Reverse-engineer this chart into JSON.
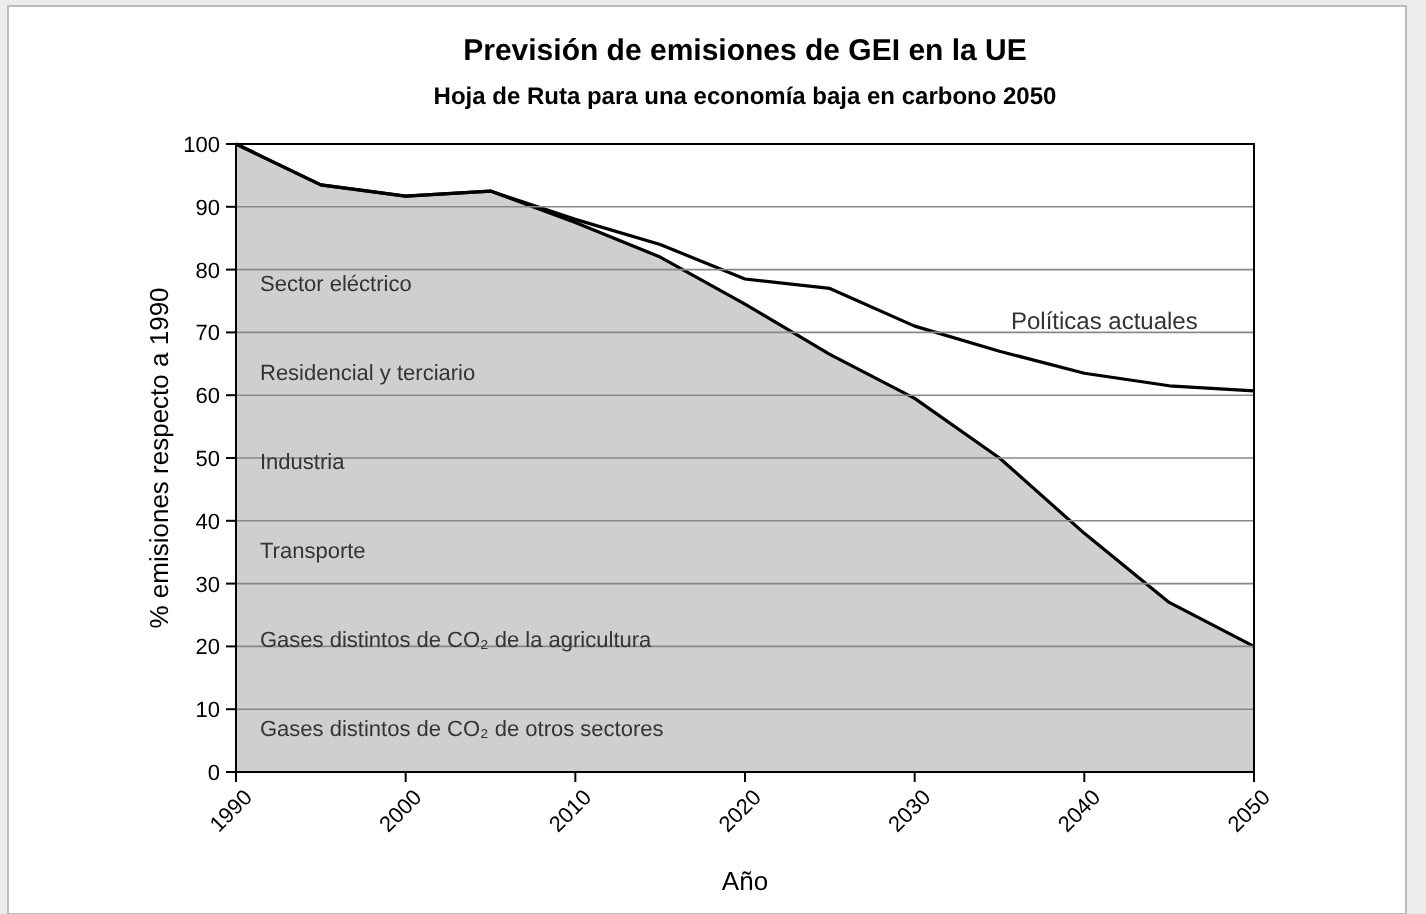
{
  "chart_data": {
    "type": "area",
    "title": "Previsión de emisiones de GEI en la UE",
    "subtitle": "Hoja de Ruta para una economía baja en carbono 2050",
    "xlabel": "Año",
    "ylabel": "% emisiones respecto a 1990",
    "x": [
      1990,
      1995,
      2000,
      2005,
      2010,
      2015,
      2020,
      2025,
      2030,
      2035,
      2040,
      2045,
      2050
    ],
    "series": [
      {
        "color": "#cfcfcf",
        "values": [
          100,
          93.5,
          91.7,
          92.5,
          87.5,
          82,
          74.5,
          66.5,
          59.5,
          50,
          38,
          27,
          20
        ]
      },
      {
        "type": "line",
        "name": "Políticas actuales",
        "color": "#000000",
        "values": [
          100,
          93.5,
          91.7,
          92.5,
          88,
          84,
          78.5,
          77,
          71,
          67,
          63.5,
          61.5,
          60.7
        ]
      }
    ],
    "xlim": [
      1990,
      2050
    ],
    "xticks": [
      1990,
      2000,
      2010,
      2020,
      2030,
      2040,
      2050
    ],
    "ylim": [
      0,
      100
    ],
    "yticks": [
      0,
      10,
      20,
      30,
      40,
      50,
      60,
      70,
      80,
      90,
      100
    ],
    "grid": "y",
    "annotations": [
      "Sector eléctrico",
      "Residencial y terciario",
      "Industria",
      "Transporte",
      "Gases distintos de CO₂ de la agricultura",
      "Gases distintos de CO₂ de otros sectores"
    ]
  }
}
